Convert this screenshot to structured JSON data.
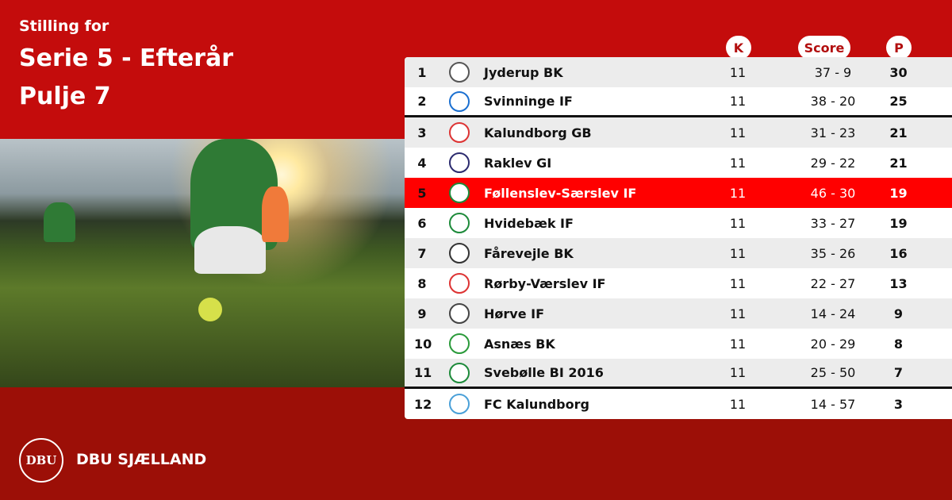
{
  "title": {
    "line1": "Stilling for",
    "line2": "Serie 5 - Efterår",
    "line3": "Pulje 7"
  },
  "columns": {
    "k": "K",
    "score": "Score",
    "p": "P"
  },
  "colors": {
    "background_top": "#c40c0c",
    "background_bottom": "#9c0f07",
    "highlight": "#ff0000"
  },
  "rows": [
    {
      "rank": "1",
      "team": "Jyderup BK",
      "k": "11",
      "score": "37 - 9",
      "p": "30",
      "logo": "#555"
    },
    {
      "rank": "2",
      "team": "Svinninge IF",
      "k": "11",
      "score": "38 - 20",
      "p": "25",
      "logo": "#1a6fd0"
    },
    {
      "rank": "3",
      "team": "Kalundborg GB",
      "k": "11",
      "score": "31 - 23",
      "p": "21",
      "logo": "#d33"
    },
    {
      "rank": "4",
      "team": "Raklev GI",
      "k": "11",
      "score": "29 - 22",
      "p": "21",
      "logo": "#2b2a6e"
    },
    {
      "rank": "5",
      "team": "Føllenslev-Særslev IF",
      "k": "11",
      "score": "46 - 30",
      "p": "19",
      "logo": "#1d8a3a"
    },
    {
      "rank": "6",
      "team": "Hvidebæk IF",
      "k": "11",
      "score": "33 - 27",
      "p": "19",
      "logo": "#1d8a3a"
    },
    {
      "rank": "7",
      "team": "Fårevejle BK",
      "k": "11",
      "score": "35 - 26",
      "p": "16",
      "logo": "#333"
    },
    {
      "rank": "8",
      "team": "Rørby-Værslev IF",
      "k": "11",
      "score": "22 - 27",
      "p": "13",
      "logo": "#d33"
    },
    {
      "rank": "9",
      "team": "Hørve IF",
      "k": "11",
      "score": "14 - 24",
      "p": "9",
      "logo": "#444"
    },
    {
      "rank": "10",
      "team": "Asnæs BK",
      "k": "11",
      "score": "20 - 29",
      "p": "8",
      "logo": "#2a9a3a"
    },
    {
      "rank": "11",
      "team": "Svebølle BI 2016",
      "k": "11",
      "score": "25 - 50",
      "p": "7",
      "logo": "#1d8a3a"
    },
    {
      "rank": "12",
      "team": "FC Kalundborg",
      "k": "11",
      "score": "14 - 57",
      "p": "3",
      "logo": "#4aa0d8"
    }
  ],
  "footer": {
    "seal_text": "DBU",
    "brand": "DBU SJÆLLAND"
  }
}
